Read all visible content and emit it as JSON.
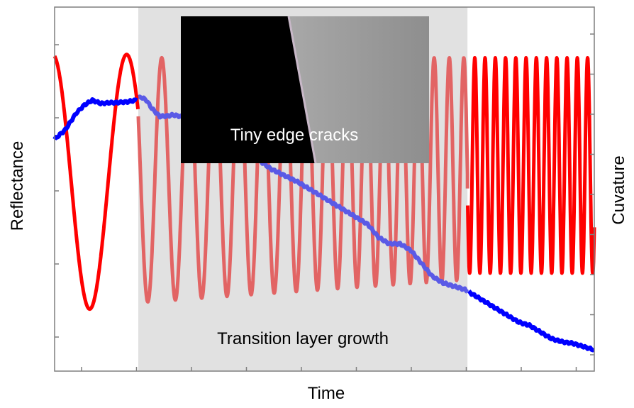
{
  "chart_data": {
    "type": "line",
    "title": "",
    "xlabel": "Time",
    "ylabel_left": "Reflectance",
    "ylabel_right": "Cuvature",
    "x_range": [
      0,
      100
    ],
    "y_left_range": [
      0,
      100
    ],
    "y_right_range": [
      0,
      100
    ],
    "tick_labels_shown": false,
    "grid": false,
    "legend": "none",
    "colors": {
      "reflectance": "#ff0000",
      "reflectance_faded": "#e26464",
      "curvature": "#0000ff",
      "curvature_faded": "#5a5ae6",
      "shaded_region": "#e1e1e1",
      "inset_dark": "#000000",
      "inset_light": "#8e8e8e"
    },
    "regions": [
      {
        "label": "Transition layer growth",
        "x_start": 15.5,
        "x_end": 76.5,
        "color": "#e1e1e1"
      }
    ],
    "inset": {
      "label": "Tiny edge cracks",
      "description_colors": [
        "#000000",
        "#8e8e8e"
      ]
    },
    "series": [
      {
        "name": "Reflectance",
        "axis": "left",
        "kind": "oscillation",
        "segments": [
          {
            "x_start": 0,
            "x_end": 15.5,
            "period": 13.7,
            "min": 14,
            "max": 92,
            "phase_start_x": 6.5
          },
          {
            "x_start": 15.5,
            "x_end": 76.5,
            "period_start": 5.3,
            "period_end": 2.6,
            "min_start": 16,
            "min_end": 23,
            "max_start": 91,
            "max_end": 91
          },
          {
            "x_start": 76.5,
            "x_end": 100,
            "period": 1.9,
            "min": 25,
            "max": 91
          }
        ]
      },
      {
        "name": "Curvature",
        "axis": "right",
        "kind": "line",
        "x": [
          0,
          2,
          4,
          5.5,
          7,
          8.5,
          10,
          12,
          13.5,
          15,
          16,
          17,
          18,
          19.5,
          21,
          22,
          23.5,
          26,
          28,
          30,
          33,
          36,
          40,
          45,
          50,
          55,
          58,
          60,
          62,
          64,
          66,
          68,
          70,
          72,
          74,
          76,
          78,
          80,
          82,
          84,
          86,
          88,
          90,
          92,
          94,
          96,
          98,
          100
        ],
        "y": [
          66,
          69,
          74,
          76.5,
          78,
          77,
          77.2,
          77.3,
          77.5,
          78,
          79,
          78,
          75.5,
          73,
          73.2,
          73.5,
          73,
          70,
          68,
          67,
          65,
          62,
          57,
          53,
          48,
          43,
          40,
          36,
          34,
          34,
          32,
          28,
          24,
          22,
          21,
          20,
          18,
          16,
          14,
          12,
          10,
          9,
          7,
          5,
          4,
          3.5,
          2.5,
          1.5
        ]
      }
    ]
  }
}
